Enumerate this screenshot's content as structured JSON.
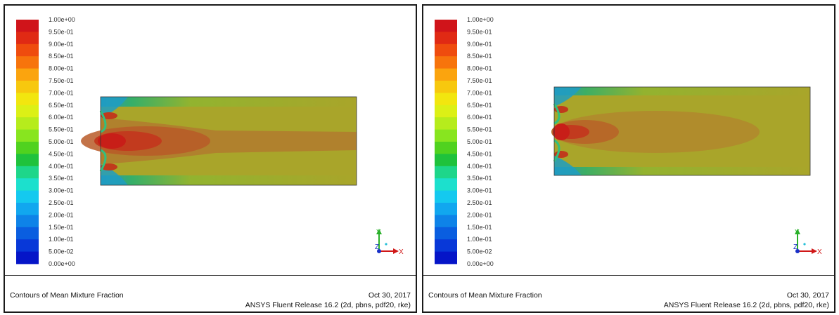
{
  "legend": {
    "colors": [
      "#d0141a",
      "#e02a14",
      "#ef4c0e",
      "#f7740c",
      "#fba40e",
      "#f7c80e",
      "#f2e60f",
      "#dcf016",
      "#b6ec1c",
      "#88e51f",
      "#50d21f",
      "#1fc23c",
      "#1ed68a",
      "#1ce0cd",
      "#14c9ef",
      "#11a7ef",
      "#0e83e8",
      "#0a5ee0",
      "#0838d8",
      "#0515c8"
    ],
    "labels": [
      "1.00e+00",
      "9.50e-01",
      "9.00e-01",
      "8.50e-01",
      "8.00e-01",
      "7.50e-01",
      "7.00e-01",
      "6.50e-01",
      "6.00e-01",
      "5.50e-01",
      "5.00e-01",
      "4.50e-01",
      "4.00e-01",
      "3.50e-01",
      "3.00e-01",
      "2.50e-01",
      "2.00e-01",
      "1.50e-01",
      "1.00e-01",
      "5.00e-02",
      "0.00e+00"
    ]
  },
  "axes": {
    "x_label": "X",
    "y_label": "Y",
    "z_label": "Z"
  },
  "panels": [
    {
      "footer_title": "Contours of Mean Mixture Fraction",
      "date": "Oct 30, 2017",
      "release": "ANSYS Fluent Release 16.2 (2d, pbns, pdf20, rke)"
    },
    {
      "footer_title": "Contours of Mean Mixture Fraction",
      "date": "Oct 30, 2017",
      "release": "ANSYS Fluent Release 16.2 (2d, pbns, pdf20, rke)"
    }
  ],
  "colors": {
    "field_base": "#a9a52a",
    "core_hot": "#c8281c",
    "plume": "#b07d2e",
    "wall_cool": "#1ea88a"
  }
}
